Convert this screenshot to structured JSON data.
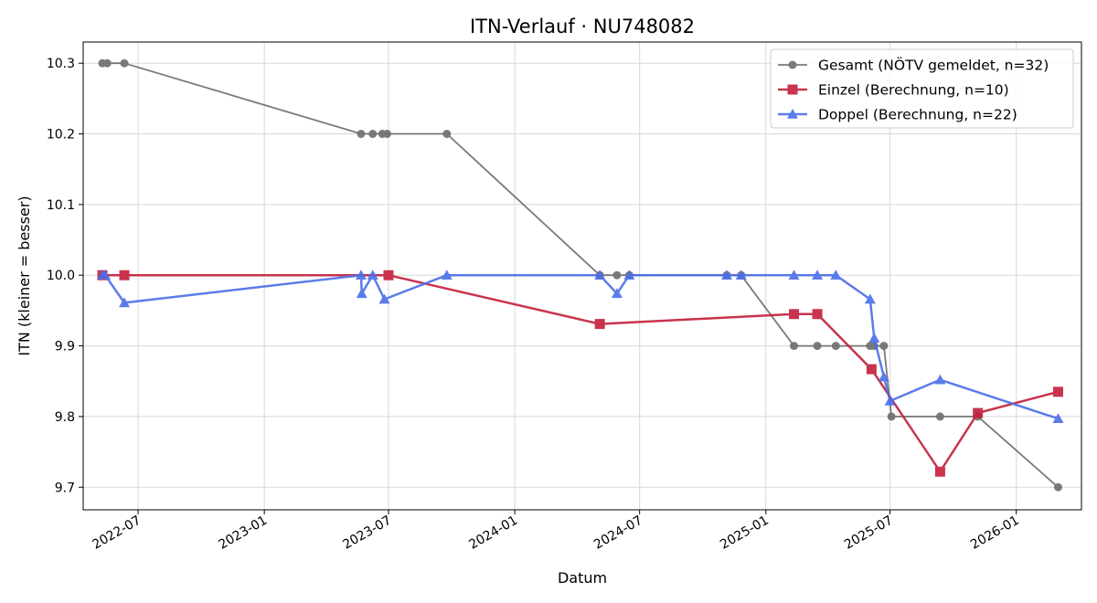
{
  "chart_data": {
    "type": "line",
    "title": "ITN-Verlauf · NU748082",
    "xlabel": "Datum",
    "ylabel": "ITN  (kleiner = besser)",
    "x_ticks": [
      "2022-07",
      "2023-01",
      "2023-07",
      "2024-01",
      "2024-07",
      "2025-01",
      "2025-07",
      "2026-01"
    ],
    "y_ticks": [
      "9.7",
      "9.8",
      "9.9",
      "10.0",
      "10.1",
      "10.2",
      "10.3"
    ],
    "xlim": [
      "2022-04-12",
      "2026-04-06"
    ],
    "ylim": [
      9.668,
      10.33
    ],
    "grid": true,
    "legend_position": "top-right",
    "series": [
      {
        "name": "Gesamt (NÖTV gemeldet, n=32)",
        "color": "#595959",
        "marker": "circle",
        "points": [
          [
            "2022-05-10",
            10.3
          ],
          [
            "2022-05-17",
            10.3
          ],
          [
            "2022-06-11",
            10.3
          ],
          [
            "2023-05-22",
            10.2
          ],
          [
            "2023-06-08",
            10.2
          ],
          [
            "2023-06-22",
            10.2
          ],
          [
            "2023-06-29",
            10.2
          ],
          [
            "2023-09-24",
            10.2
          ],
          [
            "2024-05-04",
            10.0
          ],
          [
            "2024-05-29",
            10.0
          ],
          [
            "2024-06-16",
            10.0
          ],
          [
            "2024-11-05",
            10.0
          ],
          [
            "2024-11-26",
            10.0
          ],
          [
            "2025-02-11",
            9.9
          ],
          [
            "2025-03-17",
            9.9
          ],
          [
            "2025-04-13",
            9.9
          ],
          [
            "2025-06-02",
            9.9
          ],
          [
            "2025-06-08",
            9.9
          ],
          [
            "2025-06-22",
            9.9
          ],
          [
            "2025-07-03",
            9.8
          ],
          [
            "2025-09-12",
            9.8
          ],
          [
            "2025-11-06",
            9.8
          ],
          [
            "2026-03-03",
            9.7
          ]
        ]
      },
      {
        "name": "Einzel (Berechnung, n=10)",
        "color": "#c41e3a",
        "marker": "square",
        "points": [
          [
            "2022-05-10",
            10.0
          ],
          [
            "2022-06-11",
            10.0
          ],
          [
            "2023-07-01",
            10.0
          ],
          [
            "2024-05-04",
            9.931
          ],
          [
            "2025-02-11",
            9.945
          ],
          [
            "2025-03-17",
            9.945
          ],
          [
            "2025-06-04",
            9.867
          ],
          [
            "2025-09-12",
            9.722
          ],
          [
            "2025-11-06",
            9.805
          ],
          [
            "2026-03-03",
            9.835
          ]
        ]
      },
      {
        "name": "Doppel (Berechnung, n=22)",
        "color": "#4a6ee8",
        "marker": "triangle",
        "points": [
          [
            "2022-05-10",
            10.0
          ],
          [
            "2022-05-14",
            10.0
          ],
          [
            "2022-06-11",
            9.961
          ],
          [
            "2023-05-22",
            10.0
          ],
          [
            "2023-05-23",
            9.974
          ],
          [
            "2023-06-08",
            10.0
          ],
          [
            "2023-06-25",
            9.966
          ],
          [
            "2023-09-24",
            10.0
          ],
          [
            "2024-05-04",
            10.0
          ],
          [
            "2024-05-29",
            9.974
          ],
          [
            "2024-06-16",
            10.0
          ],
          [
            "2024-11-05",
            10.0
          ],
          [
            "2024-11-26",
            10.0
          ],
          [
            "2025-02-11",
            10.0
          ],
          [
            "2025-03-17",
            10.0
          ],
          [
            "2025-04-13",
            10.0
          ],
          [
            "2025-06-02",
            9.966
          ],
          [
            "2025-06-08",
            9.911
          ],
          [
            "2025-06-22",
            9.856
          ],
          [
            "2025-07-01",
            9.822
          ],
          [
            "2025-09-12",
            9.852
          ],
          [
            "2026-03-03",
            9.797
          ]
        ]
      }
    ]
  }
}
